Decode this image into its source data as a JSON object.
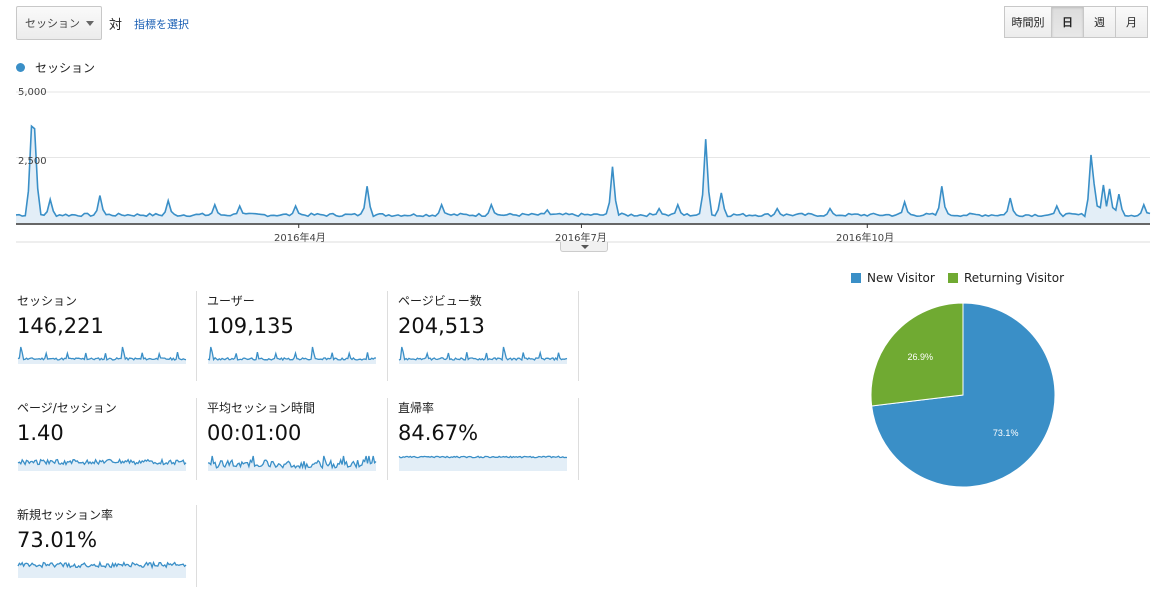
{
  "controls": {
    "metric_select": "セッション",
    "vs_label": "対",
    "pick_metric_link": "指標を選択",
    "granularity": [
      {
        "label": "時間別",
        "active": false
      },
      {
        "label": "日",
        "active": true
      },
      {
        "label": "週",
        "active": false
      },
      {
        "label": "月",
        "active": false
      }
    ]
  },
  "colors": {
    "series": "#3a8fc7",
    "new_visitor": "#3a8fc7",
    "returning_visitor": "#70aa32"
  },
  "chart_data": [
    {
      "type": "area",
      "series": [
        {
          "name": "セッション"
        }
      ],
      "yticks": [
        "5,000",
        "2,500"
      ],
      "ylim": [
        0,
        5000
      ],
      "xticks": [
        {
          "label": "2016年4月",
          "day": 91
        },
        {
          "label": "2016年7月",
          "day": 182
        },
        {
          "label": "2016年10月",
          "day": 274
        }
      ],
      "num_days": 366,
      "baseline": 250,
      "peaks": [
        [
          5,
          3700
        ],
        [
          6,
          3600
        ],
        [
          11,
          900
        ],
        [
          27,
          1050
        ],
        [
          49,
          850
        ],
        [
          64,
          700
        ],
        [
          72,
          650
        ],
        [
          90,
          650
        ],
        [
          113,
          1400
        ],
        [
          137,
          700
        ],
        [
          153,
          700
        ],
        [
          171,
          500
        ],
        [
          192,
          2150
        ],
        [
          207,
          550
        ],
        [
          213,
          700
        ],
        [
          222,
          3200
        ],
        [
          227,
          1150
        ],
        [
          245,
          550
        ],
        [
          262,
          550
        ],
        [
          286,
          800
        ],
        [
          298,
          1400
        ],
        [
          320,
          950
        ],
        [
          335,
          650
        ],
        [
          346,
          2600
        ],
        [
          347,
          1500
        ],
        [
          350,
          1450
        ],
        [
          352,
          1300
        ],
        [
          355,
          1100
        ],
        [
          363,
          700
        ]
      ],
      "grid": true
    },
    {
      "type": "pie",
      "legend": [
        "New Visitor",
        "Returning Visitor"
      ],
      "values": [
        73.1,
        26.9
      ],
      "labels": [
        "73.1%",
        "26.9%"
      ]
    }
  ],
  "metrics": [
    {
      "label": "セッション",
      "value": "146,221",
      "kind": "spiky"
    },
    {
      "label": "ユーザー",
      "value": "109,135",
      "kind": "spiky"
    },
    {
      "label": "ページビュー数",
      "value": "204,513",
      "kind": "spiky"
    },
    {
      "label": "ページ/セッション",
      "value": "1.40",
      "kind": "noisy"
    },
    {
      "label": "平均セッション時間",
      "value": "00:01:00",
      "kind": "noisy2"
    },
    {
      "label": "直帰率",
      "value": "84.67%",
      "kind": "flat"
    },
    {
      "label": "新規セッション率",
      "value": "73.01%",
      "kind": "noisy3"
    }
  ]
}
